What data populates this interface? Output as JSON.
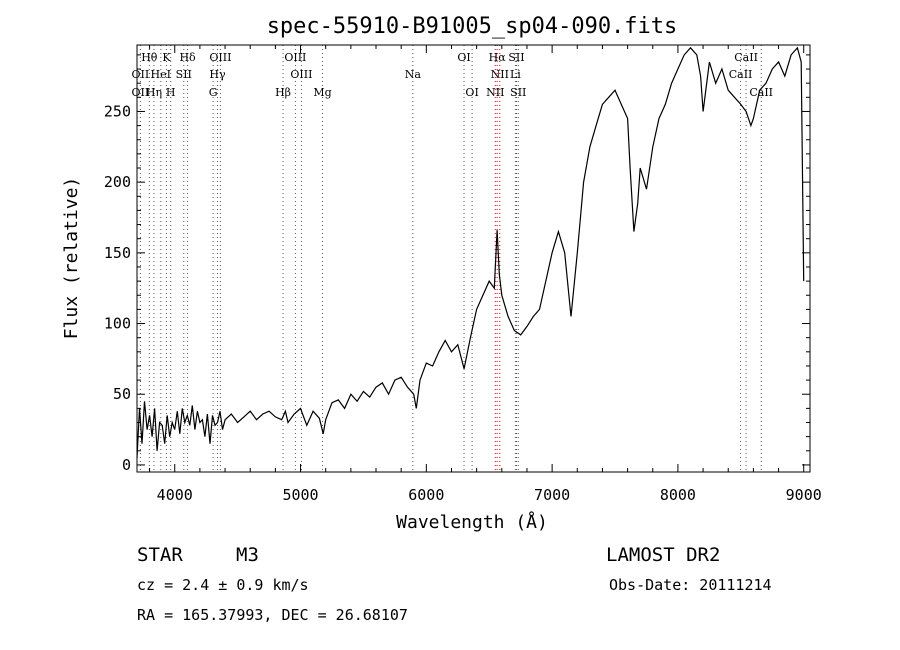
{
  "chart_data": {
    "type": "line",
    "title": "spec-55910-B91005_sp04-090.fits",
    "xlabel": "Wavelength (Å)",
    "ylabel": "Flux (relative)",
    "xlim": [
      3700,
      9050
    ],
    "ylim": [
      -5,
      297
    ],
    "x_ticks": [
      4000,
      5000,
      6000,
      7000,
      8000,
      9000
    ],
    "y_ticks": [
      0,
      50,
      100,
      150,
      200,
      250
    ],
    "grid": false,
    "series": [
      {
        "color": "#000000",
        "x": [
          3700,
          3720,
          3740,
          3760,
          3780,
          3800,
          3820,
          3840,
          3860,
          3880,
          3900,
          3920,
          3940,
          3960,
          3980,
          4000,
          4020,
          4040,
          4060,
          4080,
          4100,
          4120,
          4140,
          4160,
          4180,
          4200,
          4220,
          4240,
          4260,
          4280,
          4300,
          4320,
          4340,
          4360,
          4380,
          4400,
          4450,
          4500,
          4550,
          4600,
          4650,
          4700,
          4750,
          4800,
          4850,
          4880,
          4900,
          4950,
          5000,
          5050,
          5100,
          5150,
          5180,
          5200,
          5250,
          5300,
          5350,
          5400,
          5450,
          5500,
          5550,
          5600,
          5650,
          5700,
          5750,
          5800,
          5850,
          5900,
          5920,
          5950,
          6000,
          6050,
          6100,
          6150,
          6200,
          6250,
          6300,
          6350,
          6400,
          6450,
          6500,
          6540,
          6563,
          6580,
          6600,
          6650,
          6700,
          6750,
          6800,
          6850,
          6900,
          6950,
          7000,
          7050,
          7100,
          7150,
          7200,
          7250,
          7300,
          7350,
          7400,
          7450,
          7500,
          7550,
          7600,
          7620,
          7650,
          7680,
          7700,
          7750,
          7800,
          7850,
          7900,
          7950,
          8000,
          8050,
          8100,
          8150,
          8180,
          8200,
          8250,
          8300,
          8350,
          8400,
          8450,
          8500,
          8542,
          8580,
          8600,
          8650,
          8700,
          8750,
          8800,
          8850,
          8900,
          8950,
          8980,
          9000
        ],
        "y": [
          5,
          40,
          15,
          45,
          25,
          35,
          20,
          40,
          10,
          30,
          28,
          15,
          35,
          20,
          30,
          25,
          38,
          22,
          40,
          30,
          35,
          28,
          42,
          25,
          38,
          30,
          32,
          20,
          36,
          15,
          35,
          28,
          30,
          38,
          25,
          32,
          36,
          30,
          34,
          38,
          32,
          36,
          38,
          34,
          32,
          38,
          30,
          36,
          40,
          28,
          38,
          33,
          22,
          32,
          44,
          46,
          40,
          50,
          45,
          52,
          48,
          55,
          58,
          50,
          60,
          62,
          55,
          50,
          40,
          60,
          72,
          70,
          80,
          88,
          80,
          85,
          68,
          90,
          110,
          120,
          130,
          125,
          166,
          135,
          120,
          105,
          95,
          92,
          98,
          105,
          110,
          130,
          150,
          165,
          150,
          105,
          150,
          200,
          225,
          240,
          255,
          260,
          265,
          255,
          245,
          210,
          165,
          185,
          210,
          195,
          225,
          245,
          255,
          270,
          280,
          290,
          295,
          290,
          275,
          250,
          285,
          270,
          280,
          265,
          260,
          255,
          250,
          240,
          245,
          265,
          270,
          280,
          285,
          275,
          290,
          295,
          285,
          130
        ]
      }
    ],
    "line_markers": [
      {
        "label": "Hθ",
        "wl": 3798,
        "row": 0
      },
      {
        "label": "K",
        "wl": 3934,
        "row": 0
      },
      {
        "label": "Hδ",
        "wl": 4102,
        "row": 0
      },
      {
        "label": "OIII",
        "wl": 4363,
        "row": 0
      },
      {
        "label": "OIII",
        "wl": 4959,
        "row": 0
      },
      {
        "label": "OI",
        "wl": 6300,
        "row": 0
      },
      {
        "label": "Hα",
        "wl": 6563,
        "row": 0
      },
      {
        "label": "SII",
        "wl": 6717,
        "row": 0
      },
      {
        "label": "CaII",
        "wl": 8542,
        "row": 0
      },
      {
        "label": "OII",
        "wl": 3727,
        "row": 1
      },
      {
        "label": "HeI",
        "wl": 3889,
        "row": 1
      },
      {
        "label": "SII",
        "wl": 4072,
        "row": 1
      },
      {
        "label": "Hγ",
        "wl": 4340,
        "row": 1
      },
      {
        "label": "OIII",
        "wl": 5007,
        "row": 1
      },
      {
        "label": "Na",
        "wl": 5893,
        "row": 1
      },
      {
        "label": "NII",
        "wl": 6584,
        "row": 1
      },
      {
        "label": "Li",
        "wl": 6708,
        "row": 1
      },
      {
        "label": "CaII",
        "wl": 8498,
        "row": 1
      },
      {
        "label": "OII",
        "wl": 3727,
        "row": 2
      },
      {
        "label": "Hη",
        "wl": 3835,
        "row": 2
      },
      {
        "label": "H",
        "wl": 3968,
        "row": 2
      },
      {
        "label": "G",
        "wl": 4305,
        "row": 2
      },
      {
        "label": "Hβ",
        "wl": 4861,
        "row": 2
      },
      {
        "label": "Mg",
        "wl": 5175,
        "row": 2
      },
      {
        "label": "OI",
        "wl": 6364,
        "row": 2
      },
      {
        "label": "NII",
        "wl": 6548,
        "row": 2
      },
      {
        "label": "SII",
        "wl": 6731,
        "row": 2
      },
      {
        "label": "CaII",
        "wl": 8662,
        "row": 2
      }
    ]
  },
  "info": {
    "object_class": "STAR",
    "subclass": "M3",
    "survey": "LAMOST DR2",
    "cz": "cz = 2.4 ± 0.9 km/s",
    "obs_date": "Obs-Date: 20111214",
    "coords": "RA = 165.37993, DEC =  26.68107"
  }
}
